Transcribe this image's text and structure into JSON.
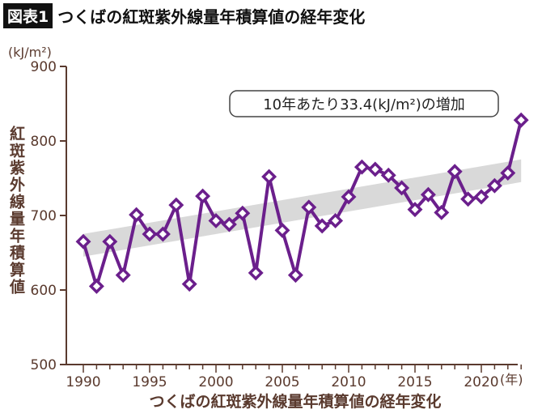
{
  "header": {
    "figure_label": "図表1",
    "title": "つくばの紅斑紫外線量年積算値の経年変化"
  },
  "colors": {
    "series": "#6b1f8c",
    "axis": "#5a3a2e",
    "trend_band": "#cfcfcf"
  },
  "chart_data": {
    "type": "line",
    "title": "つくばの紅斑紫外線量年積算値の経年変化",
    "xlabel": "つくばの紅斑紫外線量年積算値の経年変化",
    "x_unit": "(年)",
    "ylabel": "紅斑紫外線量年積算値",
    "y_unit": "(kJ/m²)",
    "ylim": [
      500,
      900
    ],
    "xlim": [
      1990,
      2023
    ],
    "yticks": [
      500,
      600,
      700,
      800,
      900
    ],
    "xticks": [
      1990,
      1995,
      2000,
      2005,
      2010,
      2015,
      2020
    ],
    "grid": false,
    "annotation": "10年あたり33.4(kJ/m²)の増加",
    "trend": {
      "slope_per_decade": 33.4,
      "start": [
        1990,
        660
      ],
      "end": [
        2023,
        760
      ]
    },
    "x": [
      1990,
      1991,
      1992,
      1993,
      1994,
      1995,
      1996,
      1997,
      1998,
      1999,
      2000,
      2001,
      2002,
      2003,
      2004,
      2005,
      2006,
      2007,
      2008,
      2009,
      2010,
      2011,
      2012,
      2013,
      2014,
      2015,
      2016,
      2017,
      2018,
      2019,
      2020,
      2021,
      2022,
      2023
    ],
    "values": [
      665,
      605,
      665,
      620,
      701,
      675,
      675,
      714,
      608,
      726,
      693,
      688,
      703,
      623,
      752,
      680,
      620,
      711,
      686,
      693,
      725,
      765,
      762,
      754,
      737,
      708,
      728,
      704,
      759,
      722,
      725,
      740,
      757,
      828
    ]
  }
}
